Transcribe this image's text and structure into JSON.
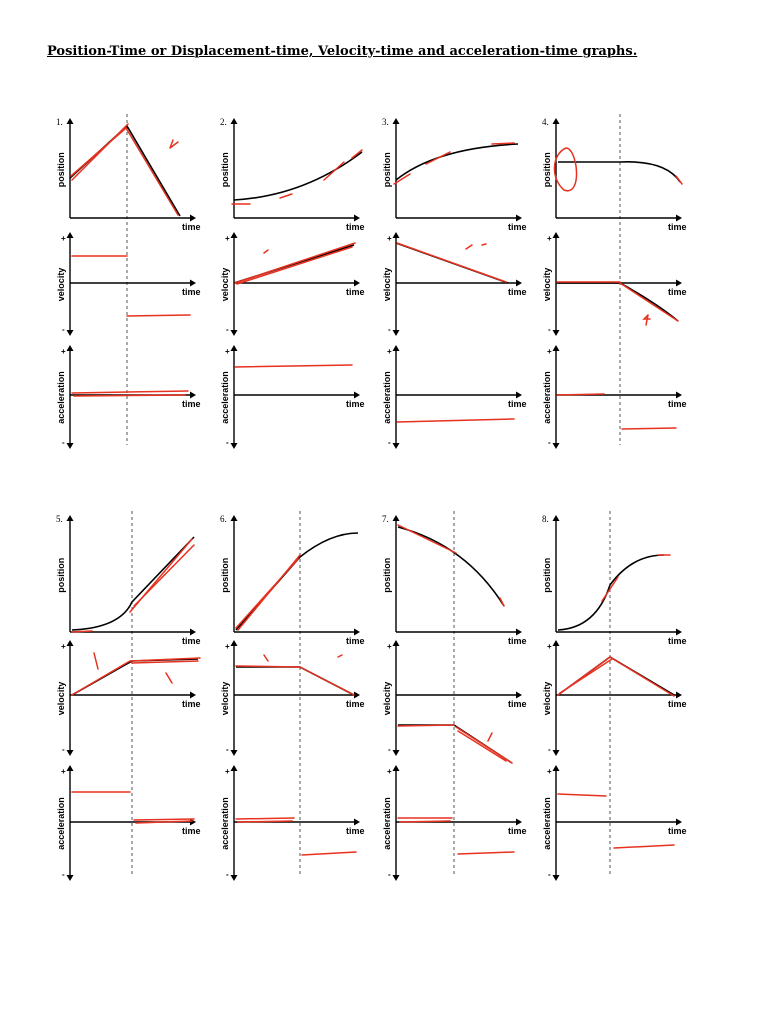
{
  "title": "Position-Time or Displacement-time, Velocity-time and acceleration-time graphs.",
  "labels": {
    "position": "position",
    "velocity": "velocity",
    "acceleration": "acceleration",
    "time": "time",
    "plus": "+",
    "minus": "-"
  },
  "graph_sets": [
    {
      "number": "1.",
      "row": 1,
      "col": 1,
      "position_shape": "constant-slope up then down",
      "velocity": "constant positive then constant negative",
      "acceleration": "zero"
    },
    {
      "number": "2.",
      "row": 1,
      "col": 2,
      "position_shape": "curving up",
      "velocity": "increasing from zero",
      "acceleration": "constant positive"
    },
    {
      "number": "3.",
      "row": 1,
      "col": 3,
      "position_shape": "curving to level",
      "velocity": "decreasing to zero",
      "acceleration": "constant negative"
    },
    {
      "number": "4.",
      "row": 1,
      "col": 4,
      "position_shape": "flat then curving down",
      "velocity": "zero then decreasing",
      "acceleration": "zero then negative"
    },
    {
      "number": "5.",
      "row": 2,
      "col": 1,
      "position_shape": "curve then straight",
      "velocity": "increasing then constant",
      "acceleration": "positive then zero"
    },
    {
      "number": "6.",
      "row": 2,
      "col": 2,
      "position_shape": "straight then leveling",
      "velocity": "constant then decreasing",
      "acceleration": "zero then negative"
    },
    {
      "number": "7.",
      "row": 2,
      "col": 3,
      "position_shape": "decreasing, steepening",
      "velocity": "negative constant then more negative",
      "acceleration": "zero then negative"
    },
    {
      "number": "8.",
      "row": 2,
      "col": 4,
      "position_shape": "S-curve",
      "velocity": "increasing then decreasing",
      "acceleration": "positive then negative"
    }
  ],
  "colors": {
    "ink": "#000000",
    "annotation": "#e8311f",
    "divider": "#555555"
  }
}
